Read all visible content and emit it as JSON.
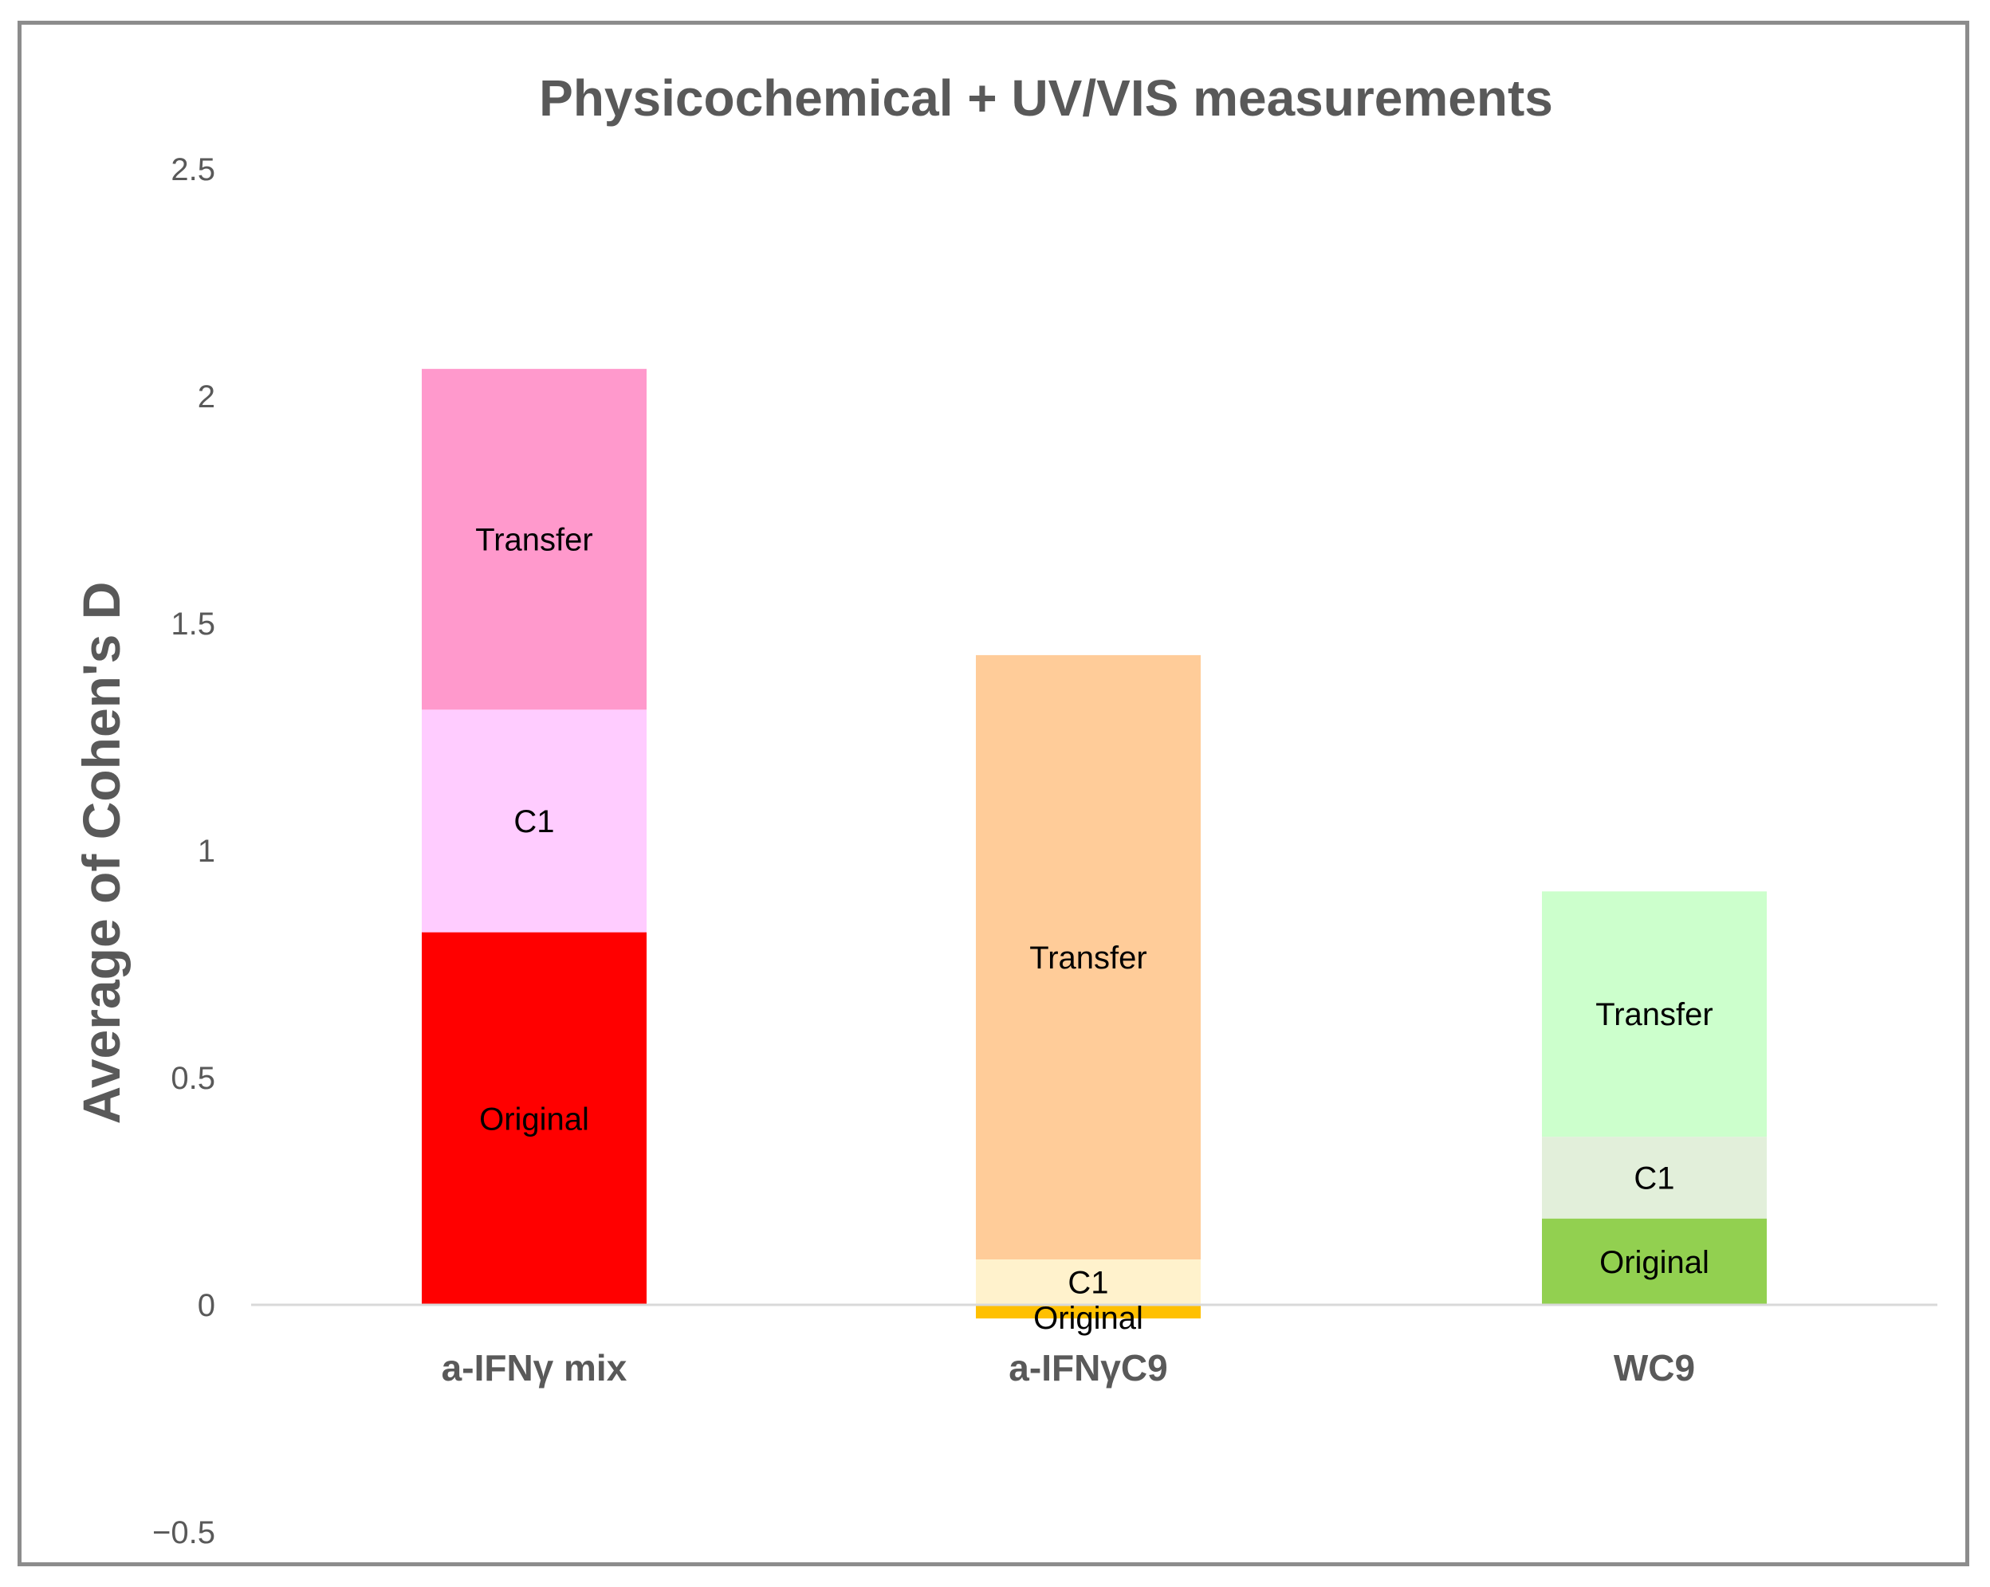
{
  "chart_data": {
    "type": "bar",
    "stacked": true,
    "title": "Physicochemical + UV/VIS  measurements",
    "xlabel": "",
    "ylabel": "Average of  Cohen's D",
    "ylim": [
      -0.5,
      2.5
    ],
    "yticks": [
      -0.5,
      0,
      0.5,
      1,
      1.5,
      2,
      2.5
    ],
    "ytick_labels": [
      "−0.5",
      "0",
      "0.5",
      "1",
      "1.5",
      "2",
      "2.5"
    ],
    "categories": [
      "a-IFNγ mix",
      "a-IFNγC9",
      "WC9"
    ],
    "bars": [
      {
        "category": "a-IFNγ mix",
        "segments": [
          {
            "name": "Original",
            "value": 0.82,
            "color": "#ff0000"
          },
          {
            "name": "C1",
            "value": 0.49,
            "color": "#ffccff"
          },
          {
            "name": "Transfer",
            "value": 0.75,
            "color": "#ff99cc"
          }
        ]
      },
      {
        "category": "a-IFNγC9",
        "segments": [
          {
            "name": "Original",
            "value": -0.03,
            "color": "#ffc000"
          },
          {
            "name": "C1",
            "value": 0.1,
            "color": "#fff2cc"
          },
          {
            "name": "Transfer",
            "value": 1.33,
            "color": "#ffcc99"
          }
        ]
      },
      {
        "category": "WC9",
        "segments": [
          {
            "name": "Original",
            "value": 0.19,
            "color": "#92d050"
          },
          {
            "name": "C1",
            "value": 0.18,
            "color": "#e2efda"
          },
          {
            "name": "Transfer",
            "value": 0.54,
            "color": "#ccffcc"
          }
        ]
      }
    ],
    "grid": false,
    "legend": "none",
    "colors": {
      "axis_line": "#d9d9d9",
      "text": "#595959",
      "frame": "#8c8c8c"
    }
  }
}
